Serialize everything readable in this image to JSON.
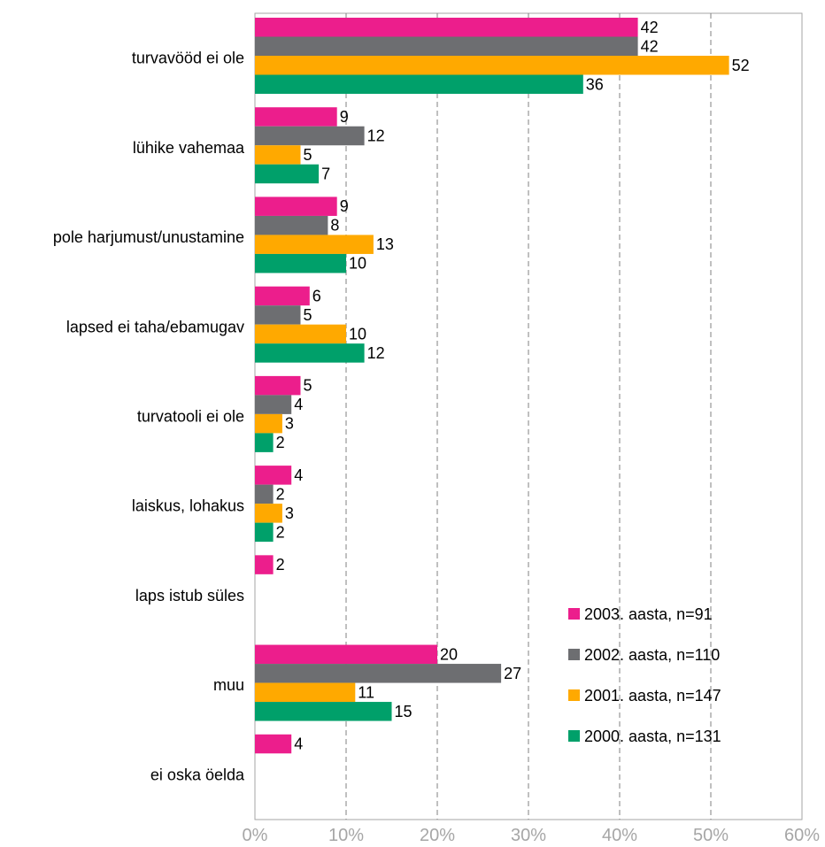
{
  "chart_data": {
    "type": "bar",
    "orientation": "horizontal",
    "categories": [
      "turvavööd ei ole",
      "lühike vahemaa",
      "pole harjumust/unustamine",
      "lapsed ei taha/ebamugav",
      "turvatooli ei ole",
      "laiskus, lohakus",
      "laps istub süles",
      "muu",
      "ei oska öelda"
    ],
    "series": [
      {
        "name": "2003. aasta, n=91",
        "color": "#ec1e8c",
        "values": [
          42,
          9,
          9,
          6,
          5,
          4,
          2,
          20,
          4
        ]
      },
      {
        "name": "2002. aasta, n=110",
        "color": "#6d6e71",
        "values": [
          42,
          12,
          8,
          5,
          4,
          2,
          null,
          27,
          null
        ]
      },
      {
        "name": "2001. aasta, n=147",
        "color": "#ffa900",
        "values": [
          52,
          5,
          13,
          10,
          3,
          3,
          null,
          11,
          null
        ]
      },
      {
        "name": "2000. aasta, n=131",
        "color": "#00a06a",
        "values": [
          36,
          7,
          10,
          12,
          2,
          2,
          null,
          15,
          null
        ]
      }
    ],
    "value_labels": [
      [
        "42",
        "9",
        "9",
        "6",
        "5",
        "4",
        "2",
        "20",
        "4"
      ],
      [
        "42",
        "12",
        "8",
        "5",
        "4",
        "2",
        "",
        "27",
        ""
      ],
      [
        "52",
        "5",
        "13",
        "10",
        "3",
        "3",
        "",
        "11",
        ""
      ],
      [
        "36",
        "7",
        "10",
        "12",
        "2",
        "2",
        "",
        "15",
        ""
      ]
    ],
    "x_ticks": [
      "0%",
      "10%",
      "20%",
      "30%",
      "40%",
      "50%",
      "60%"
    ],
    "xlim": [
      0,
      60
    ],
    "grid": "vertical dashed",
    "legend_position": "bottom-right inside plot",
    "title": "",
    "xlabel": "",
    "ylabel": ""
  }
}
